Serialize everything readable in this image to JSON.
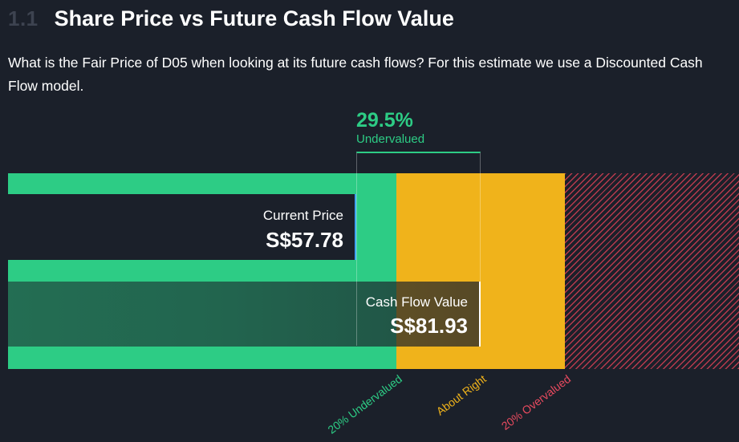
{
  "header": {
    "section_number": "1.1",
    "title": "Share Price vs Future Cash Flow Value"
  },
  "description": "What is the Fair Price of D05 when looking at its future cash flows? For this estimate we use a Discounted Cash Flow model.",
  "colors": {
    "undervalued": "#2dcc85",
    "about_right": "#f0b31b",
    "overvalued": "#e84a5f",
    "current_price_marker": "#3fa4ff",
    "background": "#1b202a"
  },
  "chart_data": {
    "type": "bar",
    "title": "Share Price vs Future Cash Flow Value",
    "currency": "S$",
    "series": [
      {
        "name": "Current Price",
        "value": 57.78,
        "display": "S$57.78"
      },
      {
        "name": "Cash Flow Value",
        "value": 81.93,
        "display": "S$81.93"
      }
    ],
    "difference": {
      "value_percent": 29.5,
      "display": "29.5%",
      "label": "Undervalued"
    },
    "zones": [
      {
        "name": "undervalued",
        "label": "20% Undervalued",
        "max_ratio_to_fair_value": 0.8
      },
      {
        "name": "about_right",
        "label": "About Right",
        "min_ratio_to_fair_value": 0.8,
        "max_ratio_to_fair_value": 1.2
      },
      {
        "name": "overvalued",
        "label": "20% Overvalued",
        "min_ratio_to_fair_value": 1.2
      }
    ]
  }
}
